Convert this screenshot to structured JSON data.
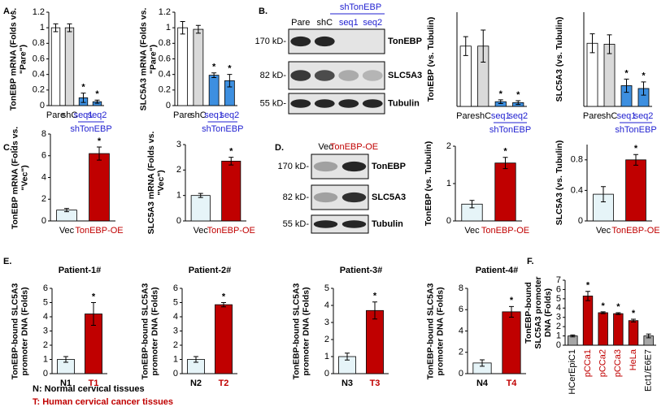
{
  "panels": [
    "A.",
    "B.",
    "C.",
    "D.",
    "E.",
    "F."
  ],
  "legend": [
    {
      "text": "N: Normal cervical tissues",
      "color": "#000000"
    },
    {
      "text": "T: Human cervical cancer tissues",
      "color": "#c00000"
    }
  ],
  "blots": [
    {
      "lanes": [
        "Pare",
        "shC",
        "seq1",
        "seq2"
      ],
      "lane_colors": [
        "#000000",
        "#000000",
        "#1f1fd0",
        "#1f1fd0"
      ],
      "group": {
        "label": "shTonEBP",
        "members": [
          2,
          3
        ]
      },
      "bands": [
        {
          "marker": "170 kD-",
          "name": "TonEBP"
        },
        {
          "marker": "82 kD-",
          "name": "SLC5A3"
        },
        {
          "marker": "55 kD-",
          "name": "Tubulin"
        }
      ]
    },
    {
      "lanes": [
        "Vec",
        "TonEBP-OE"
      ],
      "lane_colors": [
        "#000000",
        "#c00000"
      ],
      "bands": [
        {
          "marker": "170 kD-",
          "name": "TonEBP"
        },
        {
          "marker": "82 kD-",
          "name": "SLC5A3"
        },
        {
          "marker": "55 kD-",
          "name": "Tubulin"
        }
      ]
    }
  ],
  "chart_data": [
    {
      "type": "bar",
      "y_label": "TonEBP mRNA (Folds vs. \"Pare\")",
      "categories": [
        "Pare",
        "shC",
        "seq1",
        "seq2"
      ],
      "values": [
        1,
        1,
        0.1,
        0.05
      ],
      "errors": [
        0.05,
        0.05,
        0.06,
        0.02
      ],
      "markers": [
        null,
        null,
        "*",
        "*"
      ],
      "colors": [
        "#ffffff",
        "#d9d9d9",
        "#3d8fe0",
        "#3d8fe0"
      ],
      "label_colors": [
        "#000000",
        "#000000",
        "#1f1fd0",
        "#1f1fd0"
      ],
      "group": {
        "label": "shTonEBP",
        "members": [
          2,
          3
        ]
      },
      "ylim": [
        0,
        1.2
      ],
      "yticks": [
        0,
        0.2,
        0.4,
        0.6,
        0.8,
        1,
        1.2
      ]
    },
    {
      "type": "bar",
      "y_label": "SLC5A3 mRNA (Folds vs. \"Pare\")",
      "categories": [
        "Pare",
        "shC",
        "seq1",
        "seq2"
      ],
      "values": [
        1,
        0.98,
        0.39,
        0.32
      ],
      "errors": [
        0.08,
        0.05,
        0.03,
        0.08
      ],
      "markers": [
        null,
        null,
        "*",
        "*"
      ],
      "colors": [
        "#ffffff",
        "#d9d9d9",
        "#3d8fe0",
        "#3d8fe0"
      ],
      "label_colors": [
        "#000000",
        "#000000",
        "#1f1fd0",
        "#1f1fd0"
      ],
      "group": {
        "label": "shTonEBP",
        "members": [
          2,
          3
        ]
      },
      "ylim": [
        0,
        1.2
      ],
      "yticks": [
        0,
        0.2,
        0.4,
        0.6,
        0.8,
        1,
        1.2
      ]
    },
    {
      "type": "bar",
      "y_label": "TonEBP (vs. Tubulin)",
      "categories": [
        "Pare",
        "shC",
        "seq1",
        "seq2"
      ],
      "values": [
        0.64,
        0.64,
        0.05,
        0.04
      ],
      "errors": [
        0.1,
        0.17,
        0.02,
        0.02
      ],
      "markers": [
        null,
        null,
        "*",
        "*"
      ],
      "colors": [
        "#ffffff",
        "#d9d9d9",
        "#3d8fe0",
        "#3d8fe0"
      ],
      "label_colors": [
        "#000000",
        "#000000",
        "#1f1fd0",
        "#1f1fd0"
      ],
      "group": {
        "label": "shTonEBP",
        "members": [
          2,
          3
        ]
      },
      "ylim": [
        0,
        1
      ]
    },
    {
      "type": "bar",
      "y_label": "SLC5A3 (vs. Tubulin)",
      "categories": [
        "Pare",
        "shC",
        "seq1",
        "seq2"
      ],
      "values": [
        0.67,
        0.66,
        0.22,
        0.19
      ],
      "errors": [
        0.1,
        0.1,
        0.07,
        0.07
      ],
      "markers": [
        null,
        null,
        "*",
        "*"
      ],
      "colors": [
        "#ffffff",
        "#d9d9d9",
        "#3d8fe0",
        "#3d8fe0"
      ],
      "label_colors": [
        "#000000",
        "#000000",
        "#1f1fd0",
        "#1f1fd0"
      ],
      "group": {
        "label": "shTonEBP",
        "members": [
          2,
          3
        ]
      },
      "ylim": [
        0,
        1
      ]
    },
    {
      "type": "bar",
      "y_label": "TonEBP mRNA (Folds vs. \"Vec\")",
      "categories": [
        "Vec",
        "TonEBP-OE"
      ],
      "values": [
        1,
        6.2
      ],
      "errors": [
        0.15,
        0.6
      ],
      "markers": [
        null,
        "*"
      ],
      "colors": [
        "#e6f4f8",
        "#c00000"
      ],
      "label_colors": [
        "#000000",
        "#c00000"
      ],
      "ylim": [
        0,
        8
      ],
      "yticks": [
        0,
        2,
        4,
        6,
        8
      ]
    },
    {
      "type": "bar",
      "y_label": "SLC5A3 mRNA (Folds vs. \"Vec\")",
      "categories": [
        "Vec",
        "TonEBP-OE"
      ],
      "values": [
        1,
        2.35
      ],
      "errors": [
        0.08,
        0.15
      ],
      "markers": [
        null,
        "*"
      ],
      "colors": [
        "#e6f4f8",
        "#c00000"
      ],
      "label_colors": [
        "#000000",
        "#c00000"
      ],
      "ylim": [
        0,
        3
      ],
      "yticks": [
        0,
        1,
        2,
        3
      ]
    },
    {
      "type": "bar",
      "y_label": "TonEBP (vs. Tubulin)",
      "categories": [
        "Vec",
        "TonEBP-OE"
      ],
      "values": [
        0.45,
        1.55
      ],
      "errors": [
        0.1,
        0.15
      ],
      "markers": [
        null,
        "*"
      ],
      "colors": [
        "#e6f4f8",
        "#c00000"
      ],
      "label_colors": [
        "#000000",
        "#c00000"
      ],
      "ylim": [
        0,
        2
      ],
      "yticks": [
        0,
        1,
        2
      ]
    },
    {
      "type": "bar",
      "y_label": "SLC5A3 (vs. Tubulin)",
      "categories": [
        "Vec",
        "TonEBP-OE"
      ],
      "values": [
        0.35,
        0.8
      ],
      "errors": [
        0.1,
        0.07
      ],
      "markers": [
        null,
        "*"
      ],
      "colors": [
        "#e6f4f8",
        "#c00000"
      ],
      "label_colors": [
        "#000000",
        "#c00000"
      ],
      "ylim": [
        0,
        1
      ],
      "yticks": [
        0,
        0.4,
        0.8
      ]
    },
    {
      "type": "bar",
      "title": "Patient-1#",
      "y_label": "TonEBP-bound SLC5A3 promoter DNA (Folds)",
      "categories": [
        "N1",
        "T1"
      ],
      "values": [
        1,
        4.2
      ],
      "errors": [
        0.2,
        0.8
      ],
      "markers": [
        null,
        "*"
      ],
      "colors": [
        "#e6f4f8",
        "#c00000"
      ],
      "label_colors": [
        "#000000",
        "#c00000"
      ],
      "ylim": [
        0,
        6
      ],
      "yticks": [
        0,
        1,
        2,
        3,
        4,
        5,
        6
      ]
    },
    {
      "type": "bar",
      "title": "Patient-2#",
      "y_label": "TonEBP-bound SLC5A3 promoter DNA (Folds)",
      "categories": [
        "N2",
        "T2"
      ],
      "values": [
        1,
        4.85
      ],
      "errors": [
        0.2,
        0.15
      ],
      "markers": [
        null,
        "*"
      ],
      "colors": [
        "#e6f4f8",
        "#c00000"
      ],
      "label_colors": [
        "#000000",
        "#c00000"
      ],
      "ylim": [
        0,
        6
      ],
      "yticks": [
        0,
        1,
        2,
        3,
        4,
        5,
        6
      ]
    },
    {
      "type": "bar",
      "title": "Patient-3#",
      "y_label": "TonEBP-bound SLC5A3 promoter DNA (Folds)",
      "categories": [
        "N3",
        "T3"
      ],
      "values": [
        1,
        3.7
      ],
      "errors": [
        0.2,
        0.5
      ],
      "markers": [
        null,
        "*"
      ],
      "colors": [
        "#e6f4f8",
        "#c00000"
      ],
      "label_colors": [
        "#000000",
        "#c00000"
      ],
      "ylim": [
        0,
        5
      ],
      "yticks": [
        0,
        1,
        2,
        3,
        4,
        5
      ]
    },
    {
      "type": "bar",
      "title": "Patient-4#",
      "y_label": "TonEBP-bound SLC5A3 promoter DNA (Folds)",
      "categories": [
        "N4",
        "T4"
      ],
      "values": [
        1,
        5.8
      ],
      "errors": [
        0.3,
        0.5
      ],
      "markers": [
        null,
        "*"
      ],
      "colors": [
        "#e6f4f8",
        "#c00000"
      ],
      "label_colors": [
        "#000000",
        "#c00000"
      ],
      "ylim": [
        0,
        8
      ],
      "yticks": [
        0,
        2,
        4,
        6,
        8
      ]
    },
    {
      "type": "bar",
      "y_label": "TonEBP-bound SLC5A3 promoter DNA (Folds)",
      "categories": [
        "HCerEpiC1",
        "pCCa1",
        "pCCa2",
        "pCCa3",
        "HeLa",
        "Ect1/E6E7"
      ],
      "values": [
        1,
        5.3,
        3.5,
        3.4,
        2.65,
        1
      ],
      "errors": [
        0.1,
        0.5,
        0.1,
        0.1,
        0.15,
        0.2
      ],
      "markers": [
        null,
        "*",
        "*",
        "*",
        "*",
        null
      ],
      "colors": [
        "#a6a6a6",
        "#c00000",
        "#c00000",
        "#c00000",
        "#c00000",
        "#a6a6a6"
      ],
      "label_colors": [
        "#000000",
        "#c00000",
        "#c00000",
        "#c00000",
        "#c00000",
        "#000000"
      ],
      "ylim": [
        0,
        7
      ],
      "yticks": [
        0,
        1,
        2,
        3,
        4,
        5,
        6,
        7
      ]
    }
  ]
}
